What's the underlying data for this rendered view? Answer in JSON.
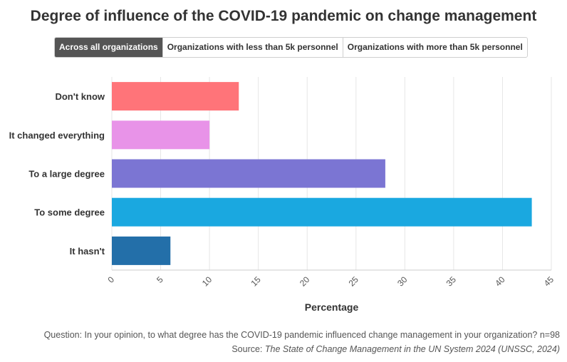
{
  "title": "Degree of influence of the COVID-19 pandemic on change management",
  "tabs": [
    {
      "label": "Across all organizations",
      "active": true
    },
    {
      "label": "Organizations with less than 5k personnel",
      "active": false
    },
    {
      "label": "Organizations with more than 5k personnel",
      "active": false
    }
  ],
  "chart_data": {
    "type": "bar",
    "orientation": "horizontal",
    "categories": [
      "Don't know",
      "It changed everything",
      "To a large degree",
      "To some degree",
      "It hasn't"
    ],
    "values": [
      13,
      10,
      28,
      43,
      6
    ],
    "colors": [
      "#ff7479",
      "#e893e8",
      "#7b75d3",
      "#1aa8e0",
      "#236fa9"
    ],
    "xlabel": "Percentage",
    "ylabel": "",
    "xlim": [
      0,
      45
    ],
    "xticks": [
      0,
      5,
      10,
      15,
      20,
      25,
      30,
      35,
      40,
      45
    ],
    "grid": true
  },
  "footer": {
    "question": "Question: In your opinion, to what degree has the COVID-19 pandemic influenced change management in your organization? n=98",
    "source_prefix": "Source: ",
    "source_text": "The State of Change Management in the UN System 2024 (UNSSC, 2024)"
  }
}
